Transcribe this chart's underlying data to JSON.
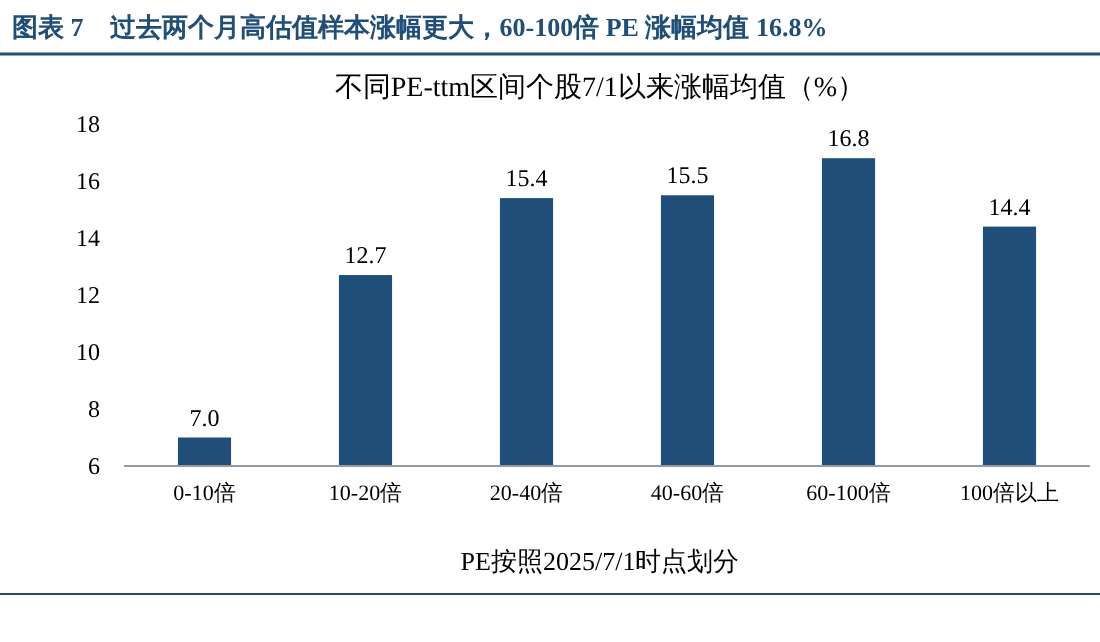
{
  "chart_data": {
    "type": "bar",
    "title": "图表 7　过去两个月高估值样本涨幅更大，60-100倍 PE 涨幅均值 16.8%",
    "subtitle": "不同PE-ttm区间个股7/1以来涨幅均值（%）",
    "xlabel": "PE按照2025/7/1时点划分",
    "categories": [
      "0-10倍",
      "10-20倍",
      "20-40倍",
      "40-60倍",
      "60-100倍",
      "100倍以上"
    ],
    "values": [
      7.0,
      12.7,
      15.4,
      15.5,
      16.8,
      14.4
    ],
    "value_labels": [
      "7.0",
      "12.7",
      "15.4",
      "15.5",
      "16.8",
      "14.4"
    ],
    "color": "#1f4e79",
    "ylim": [
      6,
      18
    ],
    "yticks": [
      6,
      8,
      10,
      12,
      14,
      16,
      18
    ]
  }
}
